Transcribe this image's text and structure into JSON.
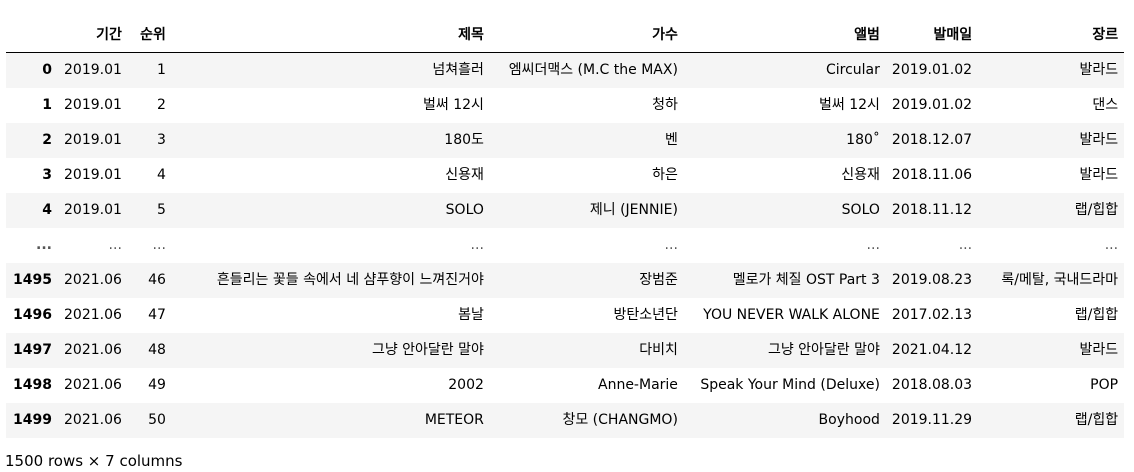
{
  "table": {
    "columns": [
      "",
      "기간",
      "순위",
      "제목",
      "가수",
      "앨범",
      "발매일",
      "장르"
    ],
    "rows": [
      [
        "0",
        "2019.01",
        "1",
        "넘쳐흘러",
        "엠씨더맥스 (M.C the MAX)",
        "Circular",
        "2019.01.02",
        "발라드"
      ],
      [
        "1",
        "2019.01",
        "2",
        "벌써 12시",
        "청하",
        "벌써 12시",
        "2019.01.02",
        "댄스"
      ],
      [
        "2",
        "2019.01",
        "3",
        "180도",
        "벤",
        "180˚",
        "2018.12.07",
        "발라드"
      ],
      [
        "3",
        "2019.01",
        "4",
        "신용재",
        "하은",
        "신용재",
        "2018.11.06",
        "발라드"
      ],
      [
        "4",
        "2019.01",
        "5",
        "SOLO",
        "제니 (JENNIE)",
        "SOLO",
        "2018.11.12",
        "랩/힙합"
      ],
      [
        "...",
        "...",
        "...",
        "...",
        "...",
        "...",
        "...",
        "..."
      ],
      [
        "1495",
        "2021.06",
        "46",
        "흔들리는 꽃들 속에서 네 샴푸향이 느껴진거야",
        "장범준",
        "멜로가 체질 OST Part 3",
        "2019.08.23",
        "록/메탈, 국내드라마"
      ],
      [
        "1496",
        "2021.06",
        "47",
        "봄날",
        "방탄소년단",
        "YOU NEVER WALK ALONE",
        "2017.02.13",
        "랩/힙합"
      ],
      [
        "1497",
        "2021.06",
        "48",
        "그냥 안아달란 말야",
        "다비치",
        "그냥 안아달란 말야",
        "2021.04.12",
        "발라드"
      ],
      [
        "1498",
        "2021.06",
        "49",
        "2002",
        "Anne-Marie",
        "Speak Your Mind (Deluxe)",
        "2018.08.03",
        "POP"
      ],
      [
        "1499",
        "2021.06",
        "50",
        "METEOR",
        "창모 (CHANGMO)",
        "Boyhood",
        "2019.11.29",
        "랩/힙합"
      ]
    ]
  },
  "summary": "1500 rows × 7 columns"
}
